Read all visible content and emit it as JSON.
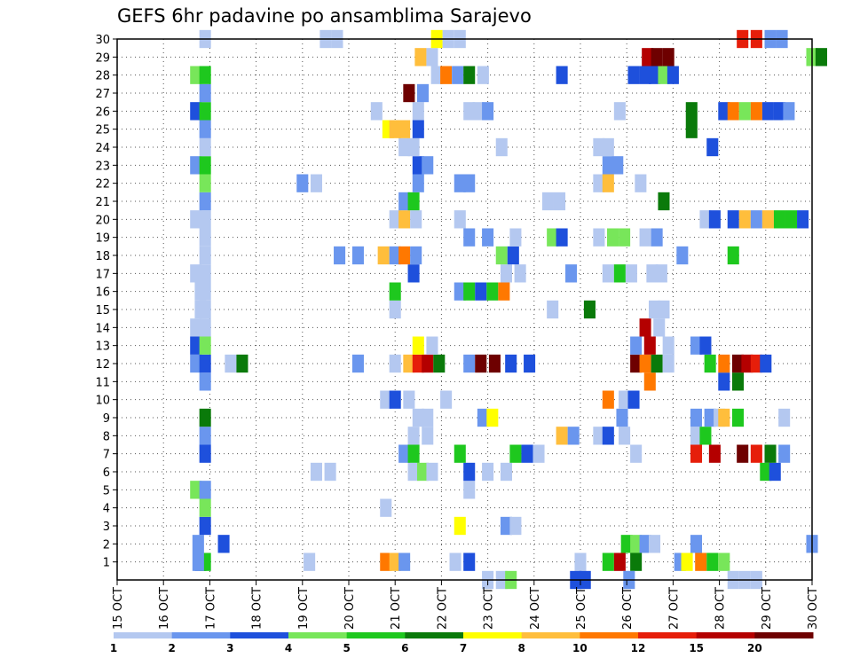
{
  "chart_data": {
    "type": "heatmap",
    "title": "GEFS 6hr padavine po ansamblima Sarajevo",
    "x_ticks": [
      "15 OCT",
      "16 OCT",
      "17 OCT",
      "18 OCT",
      "19 OCT",
      "20 OCT",
      "21 OCT",
      "22 OCT",
      "23 OCT",
      "24 OCT",
      "25 OCT",
      "26 OCT",
      "27 OCT",
      "28 OCT",
      "29 OCT",
      "30 OCT"
    ],
    "y_ticks": [
      "1",
      "2",
      "3",
      "4",
      "5",
      "6",
      "7",
      "8",
      "9",
      "10",
      "11",
      "12",
      "13",
      "14",
      "15",
      "16",
      "17",
      "18",
      "19",
      "20",
      "21",
      "22",
      "23",
      "24",
      "25",
      "26",
      "27",
      "28",
      "29",
      "30"
    ],
    "x_range_days": [
      15,
      30
    ],
    "y_range": [
      0,
      30
    ],
    "grid": true,
    "colorbar": {
      "labels": [
        "1",
        "2",
        "3",
        "4",
        "5",
        "6",
        "7",
        "8",
        "10",
        "12",
        "15",
        "20"
      ],
      "colors": [
        "#b4c8f0",
        "#6a96ee",
        "#1e50dc",
        "#78e65a",
        "#1ec81e",
        "#0a7a0a",
        "#ffff00",
        "#ffbe3c",
        "#ff7800",
        "#e61e0a",
        "#b40000",
        "#6e0000"
      ]
    },
    "cells": [
      [
        1,
        16.8,
        3
      ],
      [
        1,
        16.9,
        5
      ],
      [
        1,
        16.75,
        2
      ],
      [
        1,
        19.15,
        1
      ],
      [
        1,
        20.8,
        9
      ],
      [
        1,
        21.0,
        8
      ],
      [
        1,
        21.2,
        2
      ],
      [
        1,
        22.3,
        1
      ],
      [
        1,
        22.6,
        3
      ],
      [
        1,
        25.0,
        1
      ],
      [
        1,
        25.6,
        5
      ],
      [
        1,
        25.85,
        11
      ],
      [
        1,
        26.2,
        6
      ],
      [
        1,
        27.15,
        2
      ],
      [
        1,
        27.3,
        7
      ],
      [
        1,
        27.6,
        9
      ],
      [
        1,
        27.85,
        5
      ],
      [
        1,
        28.1,
        4
      ],
      [
        2,
        16.75,
        2
      ],
      [
        2,
        17.3,
        3
      ],
      [
        2,
        26.0,
        5
      ],
      [
        2,
        26.2,
        4
      ],
      [
        2,
        26.4,
        2
      ],
      [
        2,
        26.6,
        1
      ],
      [
        2,
        27.5,
        2
      ],
      [
        2,
        30.0,
        2
      ],
      [
        3,
        16.9,
        3
      ],
      [
        3,
        22.4,
        7
      ],
      [
        3,
        23.4,
        2
      ],
      [
        3,
        23.6,
        1
      ],
      [
        4,
        16.9,
        4
      ],
      [
        4,
        20.8,
        1
      ],
      [
        5,
        16.7,
        4
      ],
      [
        5,
        16.9,
        2
      ],
      [
        5,
        22.6,
        1
      ],
      [
        6,
        19.3,
        1
      ],
      [
        6,
        19.6,
        1
      ],
      [
        6,
        21.4,
        1
      ],
      [
        6,
        21.6,
        4
      ],
      [
        6,
        21.8,
        1
      ],
      [
        6,
        22.6,
        3
      ],
      [
        6,
        23.0,
        1
      ],
      [
        6,
        23.4,
        1
      ],
      [
        6,
        29.0,
        5
      ],
      [
        6,
        29.2,
        3
      ],
      [
        7,
        16.9,
        3
      ],
      [
        7,
        21.2,
        2
      ],
      [
        7,
        21.4,
        5
      ],
      [
        7,
        22.4,
        5
      ],
      [
        7,
        23.6,
        5
      ],
      [
        7,
        23.85,
        3
      ],
      [
        7,
        24.1,
        1
      ],
      [
        7,
        26.2,
        1
      ],
      [
        7,
        27.5,
        10
      ],
      [
        7,
        27.9,
        11
      ],
      [
        7,
        28.5,
        12
      ],
      [
        7,
        28.8,
        10
      ],
      [
        7,
        29.1,
        6
      ],
      [
        7,
        29.4,
        2
      ],
      [
        8,
        16.9,
        2
      ],
      [
        8,
        21.4,
        1
      ],
      [
        8,
        21.7,
        1
      ],
      [
        8,
        24.6,
        8
      ],
      [
        8,
        24.85,
        2
      ],
      [
        8,
        25.4,
        1
      ],
      [
        8,
        25.6,
        3
      ],
      [
        8,
        25.95,
        1
      ],
      [
        8,
        27.5,
        1
      ],
      [
        8,
        27.7,
        5
      ],
      [
        9,
        16.9,
        6
      ],
      [
        9,
        21.5,
        1
      ],
      [
        9,
        21.7,
        1
      ],
      [
        9,
        22.9,
        2
      ],
      [
        9,
        23.1,
        7
      ],
      [
        9,
        25.9,
        2
      ],
      [
        9,
        27.5,
        2
      ],
      [
        9,
        27.8,
        2
      ],
      [
        9,
        28.0,
        1
      ],
      [
        9,
        28.1,
        8
      ],
      [
        9,
        28.4,
        5
      ],
      [
        9,
        29.4,
        1
      ],
      [
        10,
        20.8,
        1
      ],
      [
        10,
        21.0,
        3
      ],
      [
        10,
        21.3,
        1
      ],
      [
        10,
        22.1,
        1
      ],
      [
        10,
        25.6,
        9
      ],
      [
        10,
        25.95,
        1
      ],
      [
        10,
        26.15,
        3
      ],
      [
        11,
        16.9,
        2
      ],
      [
        11,
        26.5,
        9
      ],
      [
        11,
        28.1,
        3
      ],
      [
        11,
        28.4,
        6
      ],
      [
        12,
        16.7,
        2
      ],
      [
        12,
        16.9,
        3
      ],
      [
        12,
        17.45,
        1
      ],
      [
        12,
        17.7,
        6
      ],
      [
        12,
        20.2,
        2
      ],
      [
        12,
        21.0,
        1
      ],
      [
        12,
        21.3,
        8
      ],
      [
        12,
        21.5,
        10
      ],
      [
        12,
        21.7,
        11
      ],
      [
        12,
        21.95,
        6
      ],
      [
        12,
        22.6,
        2
      ],
      [
        12,
        22.85,
        12
      ],
      [
        12,
        23.15,
        12
      ],
      [
        12,
        23.5,
        3
      ],
      [
        12,
        23.9,
        3
      ],
      [
        12,
        26.2,
        12
      ],
      [
        12,
        26.4,
        9
      ],
      [
        12,
        26.65,
        6
      ],
      [
        12,
        26.9,
        1
      ],
      [
        12,
        27.8,
        5
      ],
      [
        12,
        28.1,
        9
      ],
      [
        12,
        28.4,
        12
      ],
      [
        12,
        28.6,
        11
      ],
      [
        12,
        28.8,
        10
      ],
      [
        12,
        29.0,
        3
      ],
      [
        13,
        16.7,
        3
      ],
      [
        13,
        16.9,
        4
      ],
      [
        13,
        21.5,
        7
      ],
      [
        13,
        21.8,
        1
      ],
      [
        13,
        26.2,
        2
      ],
      [
        13,
        26.5,
        11
      ],
      [
        13,
        26.9,
        1
      ],
      [
        13,
        27.5,
        2
      ],
      [
        13,
        27.7,
        3
      ],
      [
        14,
        16.7,
        1
      ],
      [
        14,
        16.9,
        1
      ],
      [
        14,
        26.4,
        11
      ],
      [
        14,
        26.7,
        1
      ],
      [
        15,
        16.8,
        1
      ],
      [
        15,
        16.9,
        1
      ],
      [
        15,
        21.0,
        1
      ],
      [
        15,
        24.4,
        1
      ],
      [
        15,
        25.2,
        6
      ],
      [
        15,
        26.6,
        1
      ],
      [
        15,
        26.8,
        1
      ],
      [
        16,
        16.8,
        1
      ],
      [
        16,
        16.9,
        1
      ],
      [
        16,
        21.0,
        5
      ],
      [
        16,
        22.4,
        2
      ],
      [
        16,
        22.6,
        5
      ],
      [
        16,
        22.85,
        3
      ],
      [
        16,
        23.1,
        5
      ],
      [
        16,
        23.35,
        9
      ],
      [
        17,
        16.7,
        1
      ],
      [
        17,
        16.9,
        1
      ],
      [
        17,
        21.4,
        3
      ],
      [
        17,
        23.4,
        1
      ],
      [
        17,
        23.7,
        1
      ],
      [
        17,
        24.8,
        2
      ],
      [
        17,
        25.6,
        1
      ],
      [
        17,
        25.85,
        5
      ],
      [
        17,
        26.1,
        1
      ],
      [
        17,
        26.55,
        1
      ],
      [
        17,
        26.75,
        1
      ],
      [
        18,
        16.9,
        1
      ],
      [
        18,
        19.8,
        2
      ],
      [
        18,
        20.2,
        2
      ],
      [
        18,
        20.75,
        8
      ],
      [
        18,
        21.0,
        2
      ],
      [
        18,
        21.2,
        9
      ],
      [
        18,
        21.45,
        2
      ],
      [
        18,
        23.3,
        4
      ],
      [
        18,
        23.55,
        3
      ],
      [
        18,
        27.2,
        2
      ],
      [
        18,
        28.3,
        5
      ],
      [
        19,
        16.9,
        1
      ],
      [
        19,
        22.6,
        2
      ],
      [
        19,
        23.0,
        2
      ],
      [
        19,
        23.6,
        1
      ],
      [
        19,
        24.4,
        4
      ],
      [
        19,
        24.6,
        3
      ],
      [
        19,
        25.4,
        1
      ],
      [
        19,
        25.7,
        4
      ],
      [
        19,
        25.95,
        4
      ],
      [
        19,
        26.4,
        1
      ],
      [
        19,
        26.65,
        2
      ],
      [
        20,
        16.7,
        1
      ],
      [
        20,
        16.9,
        1
      ],
      [
        20,
        21.0,
        1
      ],
      [
        20,
        21.2,
        8
      ],
      [
        20,
        21.45,
        1
      ],
      [
        20,
        22.4,
        1
      ],
      [
        20,
        27.7,
        1
      ],
      [
        20,
        27.9,
        3
      ],
      [
        20,
        28.3,
        3
      ],
      [
        20,
        28.55,
        8
      ],
      [
        20,
        28.8,
        2
      ],
      [
        20,
        29.05,
        8
      ],
      [
        20,
        29.3,
        5
      ],
      [
        20,
        29.55,
        5
      ],
      [
        20,
        29.8,
        3
      ],
      [
        21,
        16.9,
        2
      ],
      [
        21,
        21.2,
        2
      ],
      [
        21,
        21.4,
        5
      ],
      [
        21,
        24.3,
        1
      ],
      [
        21,
        24.55,
        1
      ],
      [
        21,
        26.8,
        6
      ],
      [
        22,
        16.9,
        4
      ],
      [
        22,
        19.0,
        2
      ],
      [
        22,
        19.3,
        1
      ],
      [
        22,
        21.5,
        2
      ],
      [
        22,
        22.4,
        2
      ],
      [
        22,
        22.6,
        2
      ],
      [
        22,
        25.4,
        1
      ],
      [
        22,
        25.6,
        8
      ],
      [
        22,
        26.3,
        1
      ],
      [
        23,
        16.7,
        2
      ],
      [
        23,
        16.9,
        5
      ],
      [
        23,
        21.5,
        3
      ],
      [
        23,
        21.7,
        2
      ],
      [
        23,
        25.6,
        2
      ],
      [
        23,
        25.8,
        2
      ],
      [
        24,
        16.9,
        1
      ],
      [
        24,
        21.2,
        1
      ],
      [
        24,
        21.4,
        1
      ],
      [
        24,
        23.3,
        1
      ],
      [
        24,
        25.4,
        1
      ],
      [
        24,
        25.6,
        1
      ],
      [
        24,
        27.85,
        3
      ],
      [
        25,
        16.9,
        2
      ],
      [
        25,
        20.85,
        7
      ],
      [
        25,
        21.0,
        8
      ],
      [
        25,
        21.2,
        8
      ],
      [
        25,
        21.5,
        3
      ],
      [
        25,
        27.4,
        6
      ],
      [
        26,
        16.7,
        3
      ],
      [
        26,
        16.9,
        5
      ],
      [
        26,
        20.6,
        1
      ],
      [
        26,
        21.5,
        1
      ],
      [
        26,
        22.6,
        1
      ],
      [
        26,
        22.8,
        1
      ],
      [
        26,
        23.0,
        2
      ],
      [
        26,
        25.85,
        1
      ],
      [
        26,
        27.4,
        6
      ],
      [
        26,
        28.1,
        3
      ],
      [
        26,
        28.3,
        9
      ],
      [
        26,
        28.55,
        4
      ],
      [
        26,
        28.8,
        9
      ],
      [
        26,
        29.05,
        3
      ],
      [
        26,
        29.3,
        3
      ],
      [
        26,
        29.5,
        2
      ],
      [
        27,
        16.9,
        2
      ],
      [
        27,
        21.3,
        12
      ],
      [
        27,
        21.6,
        2
      ],
      [
        28,
        16.7,
        4
      ],
      [
        28,
        16.9,
        5
      ],
      [
        28,
        21.9,
        1
      ],
      [
        28,
        22.1,
        9
      ],
      [
        28,
        22.35,
        2
      ],
      [
        28,
        22.6,
        6
      ],
      [
        28,
        22.9,
        1
      ],
      [
        28,
        24.6,
        3
      ],
      [
        28,
        26.15,
        3
      ],
      [
        28,
        26.4,
        3
      ],
      [
        28,
        26.6,
        3
      ],
      [
        28,
        26.8,
        4
      ],
      [
        28,
        27.0,
        3
      ],
      [
        29,
        21.55,
        8
      ],
      [
        29,
        21.8,
        1
      ],
      [
        29,
        26.45,
        11
      ],
      [
        29,
        26.65,
        12
      ],
      [
        29,
        26.9,
        12
      ],
      [
        29,
        30.0,
        4
      ],
      [
        29,
        30.2,
        6
      ],
      [
        30,
        16.9,
        1
      ],
      [
        30,
        19.5,
        1
      ],
      [
        30,
        19.75,
        1
      ],
      [
        30,
        21.9,
        7
      ],
      [
        30,
        22.15,
        1
      ],
      [
        30,
        22.4,
        1
      ],
      [
        30,
        28.5,
        10
      ],
      [
        30,
        28.8,
        10
      ],
      [
        30,
        29.1,
        2
      ],
      [
        30,
        29.35,
        2
      ],
      [
        0,
        23.0,
        1
      ],
      [
        0,
        23.3,
        1
      ],
      [
        0,
        23.5,
        4
      ],
      [
        0,
        24.9,
        3
      ],
      [
        0,
        25.1,
        3
      ],
      [
        0,
        26.05,
        2
      ],
      [
        0,
        28.3,
        1
      ],
      [
        0,
        28.55,
        1
      ],
      [
        0,
        28.8,
        1
      ]
    ]
  }
}
